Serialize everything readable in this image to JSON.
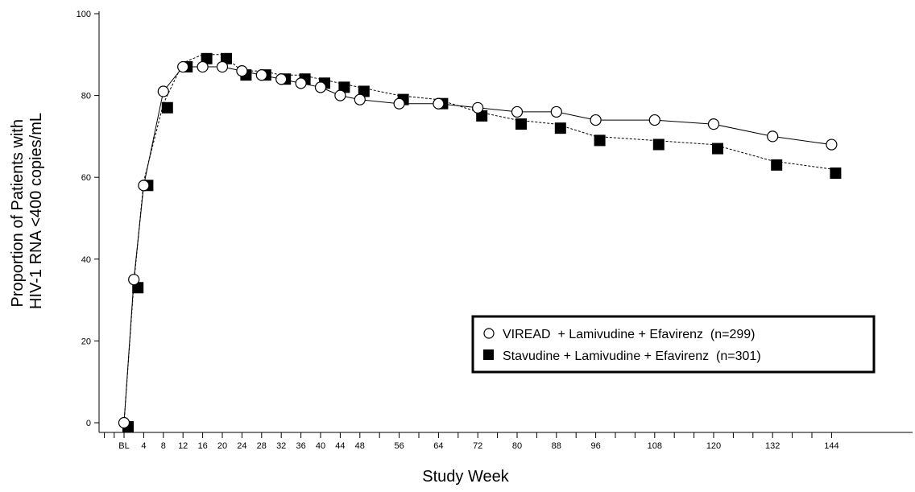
{
  "chart_data": {
    "type": "line",
    "xlabel": "Study Week",
    "ylabel_lines": [
      "Proportion of Patients with",
      "HIV-1 RNA <400 copies/mL"
    ],
    "ylim": [
      0,
      100
    ],
    "yticks": [
      0,
      20,
      40,
      60,
      80,
      100
    ],
    "xlim": [
      0,
      144
    ],
    "xticks": [
      {
        "value": 0,
        "label": "BL"
      },
      {
        "value": 4,
        "label": "4"
      },
      {
        "value": 8,
        "label": "8"
      },
      {
        "value": 12,
        "label": "12"
      },
      {
        "value": 16,
        "label": "16"
      },
      {
        "value": 20,
        "label": "20"
      },
      {
        "value": 24,
        "label": "24"
      },
      {
        "value": 28,
        "label": "28"
      },
      {
        "value": 32,
        "label": "32"
      },
      {
        "value": 36,
        "label": "36"
      },
      {
        "value": 40,
        "label": "40"
      },
      {
        "value": 44,
        "label": "44"
      },
      {
        "value": 48,
        "label": "48"
      },
      {
        "value": 56,
        "label": "56"
      },
      {
        "value": 64,
        "label": "64"
      },
      {
        "value": 72,
        "label": "72"
      },
      {
        "value": 80,
        "label": "80"
      },
      {
        "value": 88,
        "label": "88"
      },
      {
        "value": 96,
        "label": "96"
      },
      {
        "value": 108,
        "label": "108"
      },
      {
        "value": 120,
        "label": "120"
      },
      {
        "value": 132,
        "label": "132"
      },
      {
        "value": 144,
        "label": "144"
      }
    ],
    "minor_xticks": [
      52,
      60,
      68,
      76,
      84,
      92,
      100,
      104,
      112,
      116,
      124,
      128,
      136,
      140
    ],
    "legend_position": "lower-right",
    "grid": false,
    "series": [
      {
        "name": "VIREAD  + Lamivudine + Efavirenz  (n=299)",
        "marker": "open-circle",
        "line_style": "solid",
        "x": [
          0,
          2,
          4,
          8,
          12,
          16,
          20,
          24,
          28,
          32,
          36,
          40,
          44,
          48,
          56,
          64,
          72,
          80,
          88,
          96,
          108,
          120,
          132,
          144
        ],
        "y": [
          0,
          35,
          58,
          81,
          87,
          87,
          87,
          86,
          85,
          84,
          83,
          82,
          80,
          79,
          78,
          78,
          77,
          76,
          76,
          74,
          74,
          73,
          70,
          68
        ]
      },
      {
        "name": "Stavudine + Lamivudine + Efavirenz  (n=301)",
        "marker": "filled-square",
        "line_style": "dashed",
        "x": [
          0,
          2,
          4,
          8,
          12,
          16,
          20,
          24,
          28,
          32,
          36,
          40,
          44,
          48,
          56,
          64,
          72,
          80,
          88,
          96,
          108,
          120,
          132,
          144
        ],
        "y": [
          0,
          34,
          59,
          78,
          88,
          90,
          90,
          86,
          86,
          85,
          85,
          84,
          83,
          82,
          80,
          79,
          76,
          74,
          73,
          70,
          69,
          68,
          64,
          62
        ]
      }
    ]
  }
}
